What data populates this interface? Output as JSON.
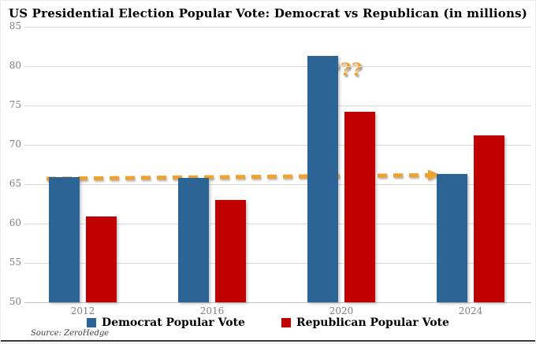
{
  "title": "US Presidential Election Popular Vote: Democrat vs Republican (in millions)",
  "source_credit": "Source: ZeroHedge",
  "annotation_text": "???",
  "accent_orange": "#f0a22e",
  "legend": [
    {
      "label": "Democrat Popular Vote",
      "color": "#2c6496"
    },
    {
      "label": "Republican Popular Vote",
      "color": "#c00000"
    }
  ],
  "chart_data": {
    "type": "bar",
    "title": "US Presidential Election Popular Vote: Democrat vs Republican (in millions)",
    "categories": [
      "2012",
      "2016",
      "2020",
      "2024"
    ],
    "series": [
      {
        "name": "Democrat Popular Vote",
        "color": "#2c6496",
        "values": [
          65.9,
          65.8,
          81.3,
          66.3
        ]
      },
      {
        "name": "Republican Popular Vote",
        "color": "#c00000",
        "values": [
          60.9,
          63.0,
          74.2,
          71.2
        ]
      }
    ],
    "ylim": [
      50,
      85
    ],
    "yticks": [
      85,
      80,
      75,
      70,
      65,
      60,
      55,
      50
    ],
    "xlabel": "",
    "ylabel": "",
    "grid": true,
    "legend_position": "bottom",
    "annotations": [
      {
        "type": "text",
        "text": "???",
        "target": "top of 2020 Democrat bar",
        "color": "#f0a22e"
      },
      {
        "type": "dashed-arrow",
        "from": "top of 2012 Democrat bar (65.9)",
        "to": "top of 2024 Democrat bar (66.3)",
        "color": "#f0a22e"
      }
    ]
  }
}
